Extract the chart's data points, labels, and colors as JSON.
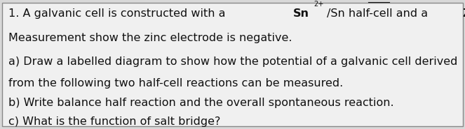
{
  "background_color": "#d8d8d8",
  "box_color": "#f0f0f0",
  "border_color": "#888888",
  "line2": "Measurement show the zinc electrode is negative.",
  "line3": "a) Draw a labelled diagram to show how the potential of a galvanic cell derived",
  "line4": "from the following two half-cell reactions can be measured.",
  "line5": "b) Write balance half reaction and the overall spontaneous reaction.",
  "line6": "c) What is the function of salt bridge?",
  "font_size": 11.5,
  "text_color": "#111111",
  "figsize": [
    6.63,
    1.85
  ],
  "dpi": 100
}
